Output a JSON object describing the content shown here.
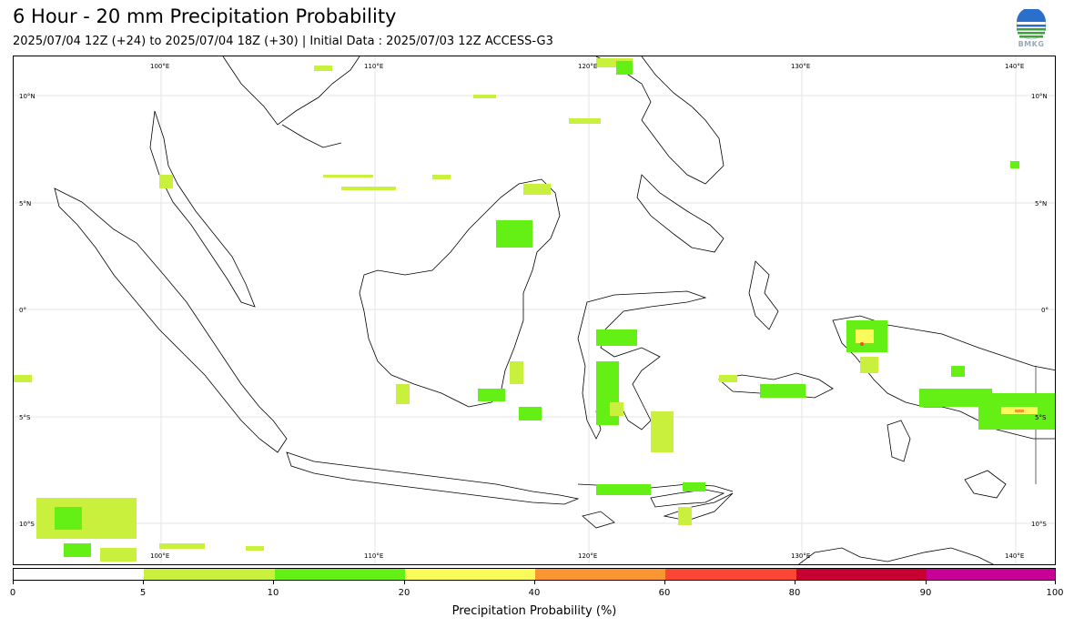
{
  "title": "6 Hour - 20 mm Precipitation Probability",
  "subtitle": "2025/07/04 12Z (+24) to 2025/07/04 18Z (+30) | Initial Data : 2025/07/03 12Z ACCESS-G3",
  "logo_text": "BMKG",
  "map": {
    "lon_labels": [
      "100°E",
      "110°E",
      "120°E",
      "130°E",
      "140°E"
    ],
    "lat_labels": [
      "10°N",
      "5°N",
      "0°",
      "5°S",
      "10°S"
    ],
    "lon_values": [
      100,
      110,
      120,
      130,
      140
    ],
    "lat_values": [
      10,
      5,
      0,
      -5,
      -10
    ]
  },
  "colorbar": {
    "label": "Precipitation Probability (%)",
    "ticks": [
      "0",
      "5",
      "10",
      "20",
      "40",
      "60",
      "80",
      "90",
      "100"
    ],
    "colors": [
      "#ffffff",
      "#c8f03c",
      "#64f014",
      "#fafa5a",
      "#fa9632",
      "#fa4632",
      "#c80032",
      "#c80096"
    ]
  }
}
